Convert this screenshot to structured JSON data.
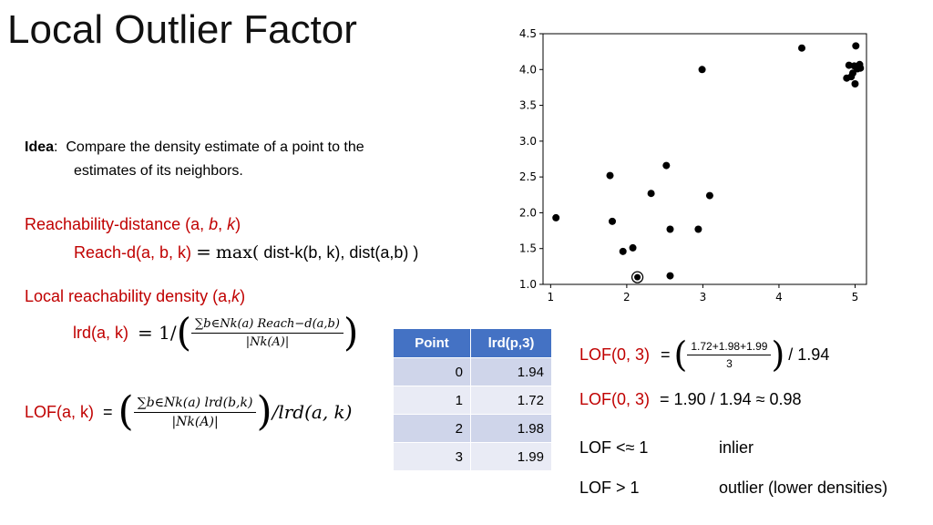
{
  "title": "Local Outlier Factor",
  "idea": {
    "label": "Idea",
    "colon": ":",
    "line1": "Compare the density estimate of a point to the",
    "line2": "estimates of its neighbors."
  },
  "reach": {
    "heading_pre": "Reachability-distance (a, ",
    "heading_b": "b",
    "heading_comma": ", ",
    "heading_k": "k",
    "heading_post": ")",
    "formula_lhs": "Reach-d(a, b, k)",
    "formula_eq": "=",
    "formula_max": "max(",
    "formula_rhs": "dist-k(b, k), dist(a,b) )"
  },
  "lrd": {
    "heading_pre": "Local reachability density (a,",
    "heading_k": "k",
    "heading_post": ")",
    "lhs": "lrd(a, k)",
    "eq": "= 1/",
    "num": "∑b∈Nk(a) Reach−d(a,b)",
    "den": "|Nk(A)|"
  },
  "lof_formula": {
    "lhs": "LOF(a, k)",
    "eq": "=",
    "num": "∑b∈Nk(a) lrd(b,k)",
    "den": "|Nk(A)|",
    "tail": "/lrd(a, k)"
  },
  "table": {
    "headers": [
      "Point",
      "lrd(p,3)"
    ],
    "rows": [
      [
        "0",
        "1.94"
      ],
      [
        "1",
        "1.72"
      ],
      [
        "2",
        "1.98"
      ],
      [
        "3",
        "1.99"
      ]
    ]
  },
  "lof_calc": {
    "line1_lhs": "LOF(0, 3)",
    "line1_eq": "=",
    "line1_num": "1.72+1.98+1.99",
    "line1_den": "3",
    "line1_tail": "/ 1.94",
    "line2_lhs": "LOF(0, 3)",
    "line2_rhs": "= 1.90 / 1.94 ≈ 0.98"
  },
  "rules": [
    {
      "cond": "LOF <≈ 1",
      "meaning": "inlier"
    },
    {
      "cond": "LOF > 1",
      "meaning": "outlier (lower densities)"
    }
  ],
  "chart_data": {
    "type": "scatter",
    "xlim": [
      0.9,
      5.15
    ],
    "ylim": [
      1.0,
      4.5
    ],
    "xticks": [
      "1",
      "2",
      "3",
      "4",
      "5"
    ],
    "xtick_values": [
      1,
      2,
      3,
      4,
      5
    ],
    "yticks": [
      "1.0",
      "1.5",
      "2.0",
      "2.5",
      "3.0",
      "3.5",
      "4.0",
      "4.5"
    ],
    "ytick_values": [
      1.0,
      1.5,
      2.0,
      2.5,
      3.0,
      3.5,
      4.0,
      4.5
    ],
    "grid": false,
    "points": [
      [
        1.07,
        1.93
      ],
      [
        1.78,
        2.52
      ],
      [
        1.81,
        1.88
      ],
      [
        1.95,
        1.46
      ],
      [
        2.08,
        1.51
      ],
      [
        2.32,
        2.27
      ],
      [
        2.52,
        2.66
      ],
      [
        2.57,
        1.77
      ],
      [
        2.57,
        1.12
      ],
      [
        2.94,
        1.77
      ],
      [
        2.99,
        4.0
      ],
      [
        3.09,
        2.24
      ],
      [
        4.3,
        4.3
      ],
      [
        4.89,
        3.88
      ],
      [
        4.92,
        4.06
      ],
      [
        4.95,
        3.9
      ],
      [
        4.97,
        3.95
      ],
      [
        4.99,
        4.05
      ],
      [
        5.0,
        3.8
      ],
      [
        5.01,
        4.33
      ],
      [
        5.03,
        4.01
      ],
      [
        5.06,
        4.07
      ],
      [
        5.07,
        4.02
      ]
    ],
    "highlighted_point": [
      2.14,
      1.1
    ]
  }
}
